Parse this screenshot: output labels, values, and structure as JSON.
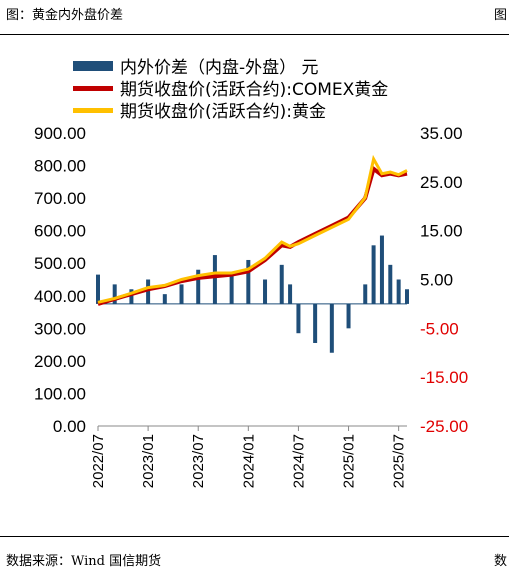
{
  "header": {
    "title": "图：黄金内外盘价差",
    "right_mark": "图"
  },
  "footer": {
    "source": "数据来源：Wind 国信期货",
    "right_mark": "数"
  },
  "colors": {
    "spread": "#1f4e79",
    "comex": "#c00000",
    "domestic": "#ffc000",
    "right_axis": "#e00000"
  },
  "chart_data": {
    "type": "bar+line",
    "series": [
      {
        "name": "内外价差（内盘-外盘） 元",
        "kind": "bar",
        "axis": "right",
        "x": [
          "2022-07",
          "2022-09",
          "2022-11",
          "2023-01",
          "2023-03",
          "2023-05",
          "2023-07",
          "2023-09",
          "2023-11",
          "2024-01",
          "2024-03",
          "2024-05",
          "2024-06",
          "2024-07",
          "2024-09",
          "2024-11",
          "2025-01",
          "2025-03",
          "2025-04",
          "2025-05",
          "2025-06",
          "2025-07",
          "2025-08"
        ],
        "values": [
          6,
          4,
          3,
          5,
          2,
          4,
          7,
          10,
          6,
          9,
          5,
          8,
          4,
          -6,
          -8,
          -10,
          -5,
          4,
          12,
          14,
          8,
          5,
          3
        ]
      },
      {
        "name": "期货收盘价(活跃合约):COMEX黄金",
        "kind": "line",
        "axis": "left",
        "x": [
          "2022-07",
          "2022-09",
          "2022-11",
          "2023-01",
          "2023-03",
          "2023-05",
          "2023-07",
          "2023-09",
          "2023-11",
          "2024-01",
          "2024-03",
          "2024-05",
          "2024-06",
          "2024-07",
          "2024-09",
          "2024-11",
          "2025-01",
          "2025-03",
          "2025-04",
          "2025-05",
          "2025-06",
          "2025-07",
          "2025-08"
        ],
        "values": [
          375,
          390,
          405,
          420,
          430,
          445,
          455,
          460,
          465,
          475,
          510,
          555,
          550,
          565,
          590,
          615,
          640,
          700,
          790,
          770,
          775,
          770,
          775
        ]
      },
      {
        "name": "期货收盘价(活跃合约):黄金",
        "kind": "line",
        "axis": "left",
        "x": [
          "2022-07",
          "2022-09",
          "2022-11",
          "2023-01",
          "2023-03",
          "2023-05",
          "2023-07",
          "2023-09",
          "2023-11",
          "2024-01",
          "2024-03",
          "2024-05",
          "2024-06",
          "2024-07",
          "2024-09",
          "2024-11",
          "2025-01",
          "2025-03",
          "2025-04",
          "2025-05",
          "2025-06",
          "2025-07",
          "2025-08"
        ],
        "values": [
          380,
          392,
          408,
          425,
          432,
          450,
          462,
          470,
          470,
          482,
          515,
          565,
          552,
          560,
          585,
          610,
          635,
          702,
          820,
          775,
          780,
          772,
          785
        ]
      }
    ],
    "x_ticks": [
      "2022/07",
      "2023/01",
      "2023/07",
      "2024/01",
      "2024/07",
      "2025/01",
      "2025/07"
    ],
    "y_left_ticks": [
      "900.00",
      "800.00",
      "700.00",
      "600.00",
      "500.00",
      "400.00",
      "300.00",
      "200.00",
      "100.00",
      "0.00"
    ],
    "y_right_ticks": [
      "35.00",
      "25.00",
      "15.00",
      "5.00",
      "-5.00",
      "-15.00",
      "-25.00"
    ],
    "ylim_left": [
      0,
      900
    ],
    "ylim_right": [
      -25,
      35
    ],
    "legend_position": "top-left"
  }
}
